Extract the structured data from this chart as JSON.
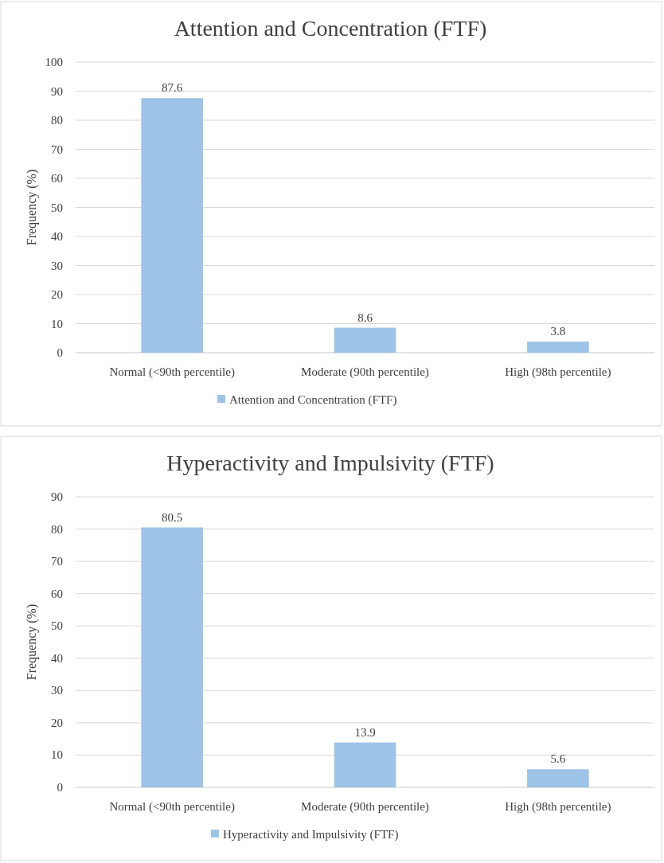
{
  "chart_data": [
    {
      "type": "bar",
      "title": "Attention and Concentration (FTF)",
      "ylabel": "Frequency (%)",
      "categories": [
        "Normal (<90th percentile)",
        "Moderate (90th percentile)",
        "High (98th percentile)"
      ],
      "series": [
        {
          "name": "Attention and Concentration (FTF)",
          "color": "#9dc3e6",
          "values": [
            87.6,
            8.6,
            3.8
          ]
        }
      ],
      "ylim": [
        0,
        100
      ],
      "yticks": [
        0,
        10,
        20,
        30,
        40,
        50,
        60,
        70,
        80,
        90,
        100
      ],
      "grid": "y",
      "legend": "bottom",
      "data_labels": true
    },
    {
      "type": "bar",
      "title": "Hyperactivity and Impulsivity (FTF)",
      "ylabel": "Frequency (%)",
      "categories": [
        "Normal (<90th percentile)",
        "Moderate (90th percentile)",
        "High (98th percentile)"
      ],
      "series": [
        {
          "name": "Hyperactivity and Impulsivity (FTF)",
          "color": "#9dc3e6",
          "values": [
            80.5,
            13.9,
            5.6
          ]
        }
      ],
      "ylim": [
        0,
        90
      ],
      "yticks": [
        0,
        10,
        20,
        30,
        40,
        50,
        60,
        70,
        80,
        90
      ],
      "grid": "y",
      "legend": "bottom",
      "data_labels": true
    }
  ]
}
